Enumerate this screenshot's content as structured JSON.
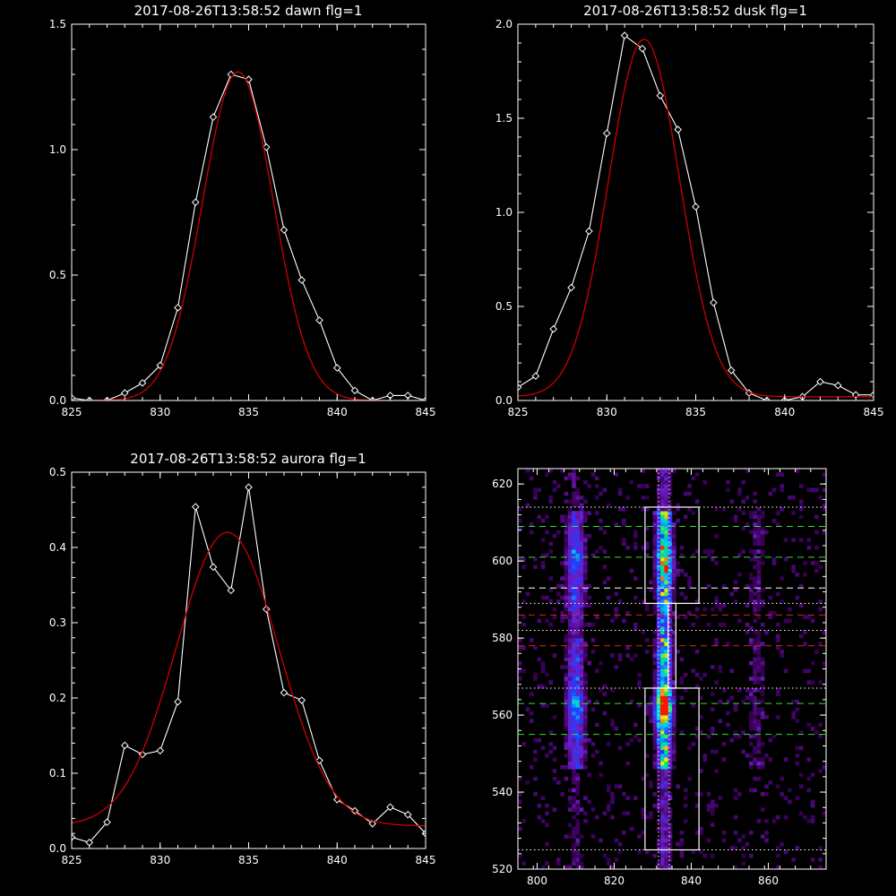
{
  "chart_data": [
    {
      "type": "line",
      "title": "2017-08-26T13:58:52 dawn flg=1",
      "xlim": [
        825,
        845
      ],
      "ylim": [
        0,
        1.5
      ],
      "xticks": [
        825,
        830,
        835,
        840,
        845
      ],
      "xtick_labels": [
        "825",
        "830",
        "835",
        "840",
        "845"
      ],
      "yticks": [
        0,
        0.5,
        1.0,
        1.5
      ],
      "ytick_labels": [
        "0.0",
        "0.5",
        "1.0",
        "1.5"
      ],
      "series": [
        {
          "color": "#ffffff",
          "marker": "diamond",
          "x": [
            825,
            826,
            827,
            828,
            829,
            830,
            831,
            832,
            833,
            834,
            835,
            836,
            837,
            838,
            839,
            840,
            841,
            842,
            843,
            844,
            845
          ],
          "y": [
            0.01,
            0.0,
            0.0,
            0.03,
            0.07,
            0.14,
            0.37,
            0.79,
            1.13,
            1.3,
            1.28,
            1.01,
            0.68,
            0.48,
            0.32,
            0.13,
            0.04,
            0.0,
            0.02,
            0.02,
            0.0
          ]
        },
        {
          "color": "#cc0000",
          "model": "gaussian",
          "params": {
            "amp": 1.31,
            "center": 834.4,
            "sigma": 2.0,
            "offset": 0.0
          }
        }
      ]
    },
    {
      "type": "line",
      "title": "2017-08-26T13:58:52 dusk flg=1",
      "xlim": [
        825,
        845
      ],
      "ylim": [
        0,
        2.0
      ],
      "xticks": [
        825,
        830,
        835,
        840,
        845
      ],
      "xtick_labels": [
        "825",
        "830",
        "835",
        "840",
        "845"
      ],
      "yticks": [
        0,
        0.5,
        1.0,
        1.5,
        2.0
      ],
      "ytick_labels": [
        "0.0",
        "0.5",
        "1.0",
        "1.5",
        "2.0"
      ],
      "series": [
        {
          "color": "#ffffff",
          "marker": "diamond",
          "x": [
            825,
            826,
            827,
            828,
            829,
            830,
            831,
            832,
            833,
            834,
            835,
            836,
            837,
            838,
            839,
            840,
            841,
            842,
            843,
            844,
            845
          ],
          "y": [
            0.07,
            0.13,
            0.38,
            0.6,
            0.9,
            1.42,
            1.94,
            1.87,
            1.62,
            1.44,
            1.03,
            0.52,
            0.16,
            0.04,
            0.0,
            0.0,
            0.02,
            0.1,
            0.08,
            0.03,
            0.03
          ]
        },
        {
          "color": "#cc0000",
          "model": "gaussian",
          "params": {
            "amp": 1.9,
            "center": 832.1,
            "sigma": 2.0,
            "offset": 0.02
          }
        }
      ]
    },
    {
      "type": "line",
      "title": "2017-08-26T13:58:52 aurora flg=1",
      "xlim": [
        825,
        845
      ],
      "ylim": [
        0,
        0.5
      ],
      "xticks": [
        825,
        830,
        835,
        840,
        845
      ],
      "xtick_labels": [
        "825",
        "830",
        "835",
        "840",
        "845"
      ],
      "yticks": [
        0,
        0.1,
        0.2,
        0.3,
        0.4,
        0.5
      ],
      "ytick_labels": [
        "0.0",
        "0.1",
        "0.2",
        "0.3",
        "0.4",
        "0.5"
      ],
      "series": [
        {
          "color": "#ffffff",
          "marker": "diamond",
          "x": [
            825,
            826,
            827,
            828,
            829,
            830,
            831,
            832,
            833,
            834,
            835,
            836,
            837,
            838,
            839,
            840,
            841,
            842,
            843,
            844,
            845
          ],
          "y": [
            0.015,
            0.008,
            0.035,
            0.137,
            0.125,
            0.13,
            0.195,
            0.454,
            0.374,
            0.343,
            0.48,
            0.318,
            0.207,
            0.197,
            0.117,
            0.065,
            0.05,
            0.033,
            0.055,
            0.045,
            0.02
          ]
        },
        {
          "color": "#cc0000",
          "model": "gaussian",
          "params": {
            "amp": 0.39,
            "center": 833.8,
            "sigma": 2.9,
            "offset": 0.03
          }
        }
      ]
    },
    {
      "type": "heatmap",
      "title": "",
      "xlim": [
        795,
        875
      ],
      "ylim": [
        520,
        624
      ],
      "xticks": [
        800,
        820,
        840,
        860
      ],
      "xtick_labels": [
        "800",
        "820",
        "840",
        "860"
      ],
      "yticks": [
        520,
        540,
        560,
        580,
        600,
        620
      ],
      "ytick_labels": [
        "520",
        "540",
        "560",
        "580",
        "600",
        "620"
      ],
      "emission_columns": [
        {
          "center": 810,
          "width": 1.6,
          "peak": 0.45
        },
        {
          "center": 833,
          "width": 1.3,
          "peak": 0.95
        },
        {
          "center": 857,
          "width": 1.6,
          "peak": 0.15
        }
      ],
      "hot_spots": [
        {
          "x": 832.5,
          "y": 562,
          "peak": 1.0
        },
        {
          "x": 833.5,
          "y": 600,
          "peak": 0.5
        },
        {
          "x": 810,
          "y": 562,
          "peak": 0.45
        },
        {
          "x": 810,
          "y": 600,
          "peak": 0.3
        }
      ],
      "boxes": [
        {
          "x0": 828,
          "x1": 842,
          "y0": 589,
          "y1": 614,
          "color": "#ffffff"
        },
        {
          "x0": 828,
          "x1": 842,
          "y0": 525,
          "y1": 567,
          "color": "#ffffff"
        },
        {
          "x0": 834,
          "x1": 836,
          "y0": 567,
          "y1": 589,
          "color": "#ffffff"
        }
      ],
      "hlines": [
        {
          "y": 614,
          "color": "#ffffff",
          "style": "dotted"
        },
        {
          "y": 609,
          "color": "#33dd33",
          "style": "dashed"
        },
        {
          "y": 601,
          "color": "#33dd33",
          "style": "dashed"
        },
        {
          "y": 593,
          "color": "#ffffff",
          "style": "dashed"
        },
        {
          "y": 589,
          "color": "#ffffff",
          "style": "dotted"
        },
        {
          "y": 586,
          "color": "#dd2222",
          "style": "dashed"
        },
        {
          "y": 582,
          "color": "#ffffff",
          "style": "dotted"
        },
        {
          "y": 578,
          "color": "#dd2222",
          "style": "dashed"
        },
        {
          "y": 567,
          "color": "#ffffff",
          "style": "dotted"
        },
        {
          "y": 563,
          "color": "#33dd33",
          "style": "dashed"
        },
        {
          "y": 555,
          "color": "#33dd33",
          "style": "dashed"
        },
        {
          "y": 525,
          "color": "#ffffff",
          "style": "dotted"
        }
      ],
      "vlines": [
        {
          "x": 831.5,
          "color": "#ffffff",
          "style": "dotted"
        },
        {
          "x": 834.3,
          "color": "#ffffff",
          "style": "dotted"
        }
      ]
    }
  ]
}
